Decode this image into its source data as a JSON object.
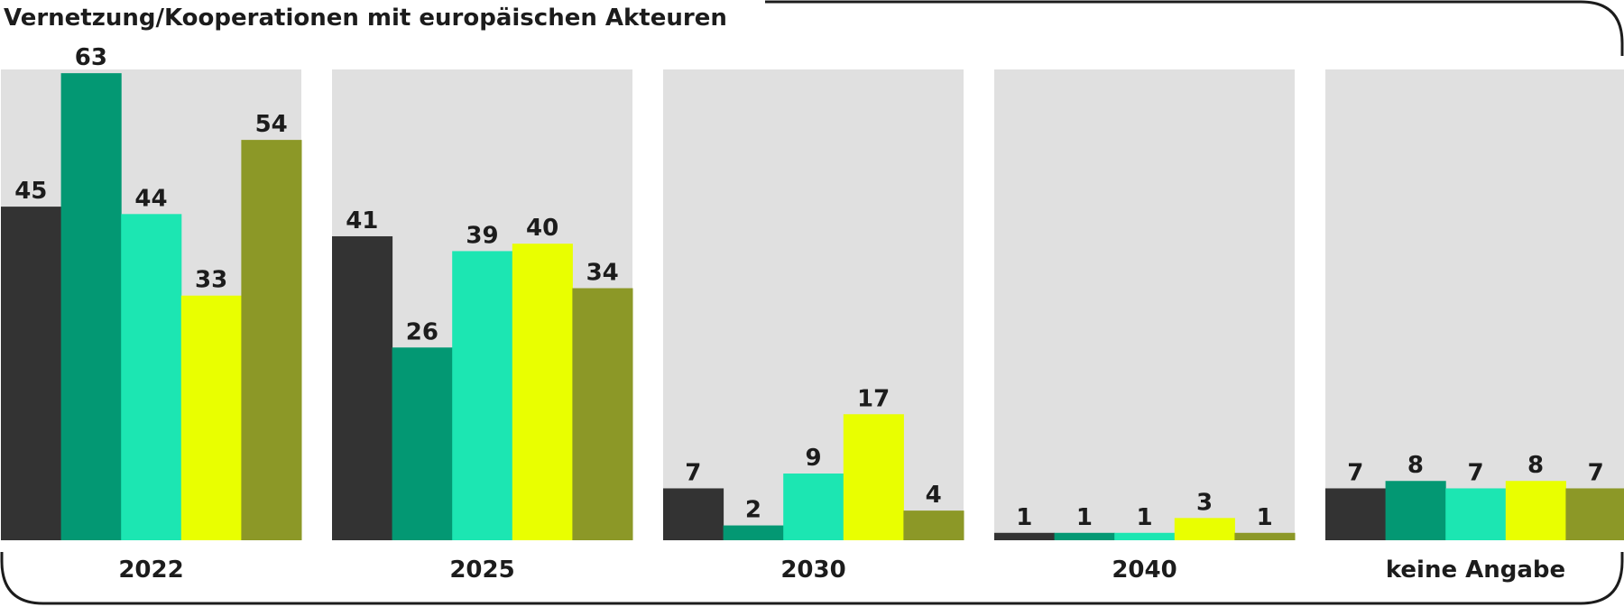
{
  "chart_data": {
    "type": "bar",
    "title": "Vernetzung/Kooperationen mit europäischen Akteuren",
    "categories": [
      "2022",
      "2025",
      "2030",
      "2040",
      "keine Angabe"
    ],
    "series": [
      {
        "color": "#333333",
        "values": [
          45,
          41,
          7,
          1,
          7
        ]
      },
      {
        "color": "#039873",
        "values": [
          63,
          26,
          2,
          1,
          8
        ]
      },
      {
        "color": "#1ce6b2",
        "values": [
          44,
          39,
          9,
          1,
          7
        ]
      },
      {
        "color": "#e9ff00",
        "values": [
          33,
          40,
          17,
          3,
          8
        ]
      },
      {
        "color": "#8c9827",
        "values": [
          54,
          34,
          4,
          1,
          7
        ]
      }
    ],
    "ylim": [
      0,
      70
    ],
    "grid": false,
    "legend": "none",
    "panel_color": "#e0e0e0",
    "frame_color": "#1c1c1c",
    "text_color": "#1c1c1c"
  }
}
